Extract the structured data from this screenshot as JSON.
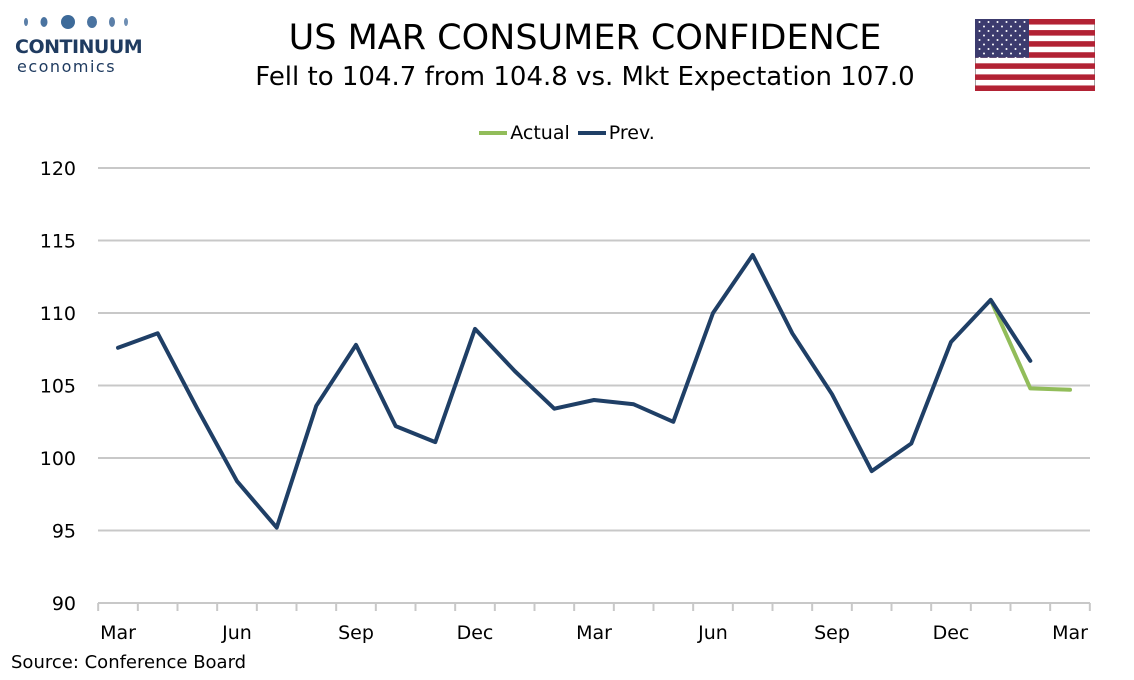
{
  "logo": {
    "brand": "CONTINUUM",
    "sub": "economics",
    "color": "#1f3b60"
  },
  "header": {
    "title": "US MAR CONSUMER CONFIDENCE",
    "subtitle": "Fell to 104.7 from 104.8 vs. Mkt Expectation 107.0"
  },
  "flag": {
    "icon": "us-flag-icon",
    "red": "#b22234",
    "blue": "#3c3b6e"
  },
  "source": "Source: Conference Board",
  "chart_data": {
    "type": "line",
    "legend_position": "top-center",
    "grid": true,
    "ylim": [
      90,
      120
    ],
    "yticks": [
      90,
      95,
      100,
      105,
      110,
      115,
      120
    ],
    "x_range": [
      0,
      24
    ],
    "xticks": [
      {
        "x": 0,
        "label": "Mar"
      },
      {
        "x": 3,
        "label": "Jun"
      },
      {
        "x": 6,
        "label": "Sep"
      },
      {
        "x": 9,
        "label": "Dec"
      },
      {
        "x": 12,
        "label": "Mar"
      },
      {
        "x": 15,
        "label": "Jun"
      },
      {
        "x": 18,
        "label": "Sep"
      },
      {
        "x": 21,
        "label": "Dec"
      },
      {
        "x": 24,
        "label": "Mar"
      }
    ],
    "series": [
      {
        "name": "Actual",
        "color": "#92bd5a",
        "x": [
          22,
          23,
          24
        ],
        "values": [
          110.9,
          104.8,
          104.7
        ]
      },
      {
        "name": "Prev.",
        "color": "#1f3f66",
        "x": [
          0,
          1,
          2,
          3,
          4,
          5,
          6,
          7,
          8,
          9,
          10,
          11,
          12,
          13,
          14,
          15,
          16,
          17,
          18,
          19,
          20,
          21,
          22,
          23
        ],
        "values": [
          107.6,
          108.6,
          103.4,
          98.4,
          95.2,
          103.6,
          107.8,
          102.2,
          101.1,
          108.9,
          106.0,
          103.4,
          104.0,
          103.7,
          102.5,
          110.0,
          114.0,
          108.6,
          104.4,
          99.1,
          101.0,
          108.0,
          110.9,
          106.7
        ]
      }
    ]
  }
}
